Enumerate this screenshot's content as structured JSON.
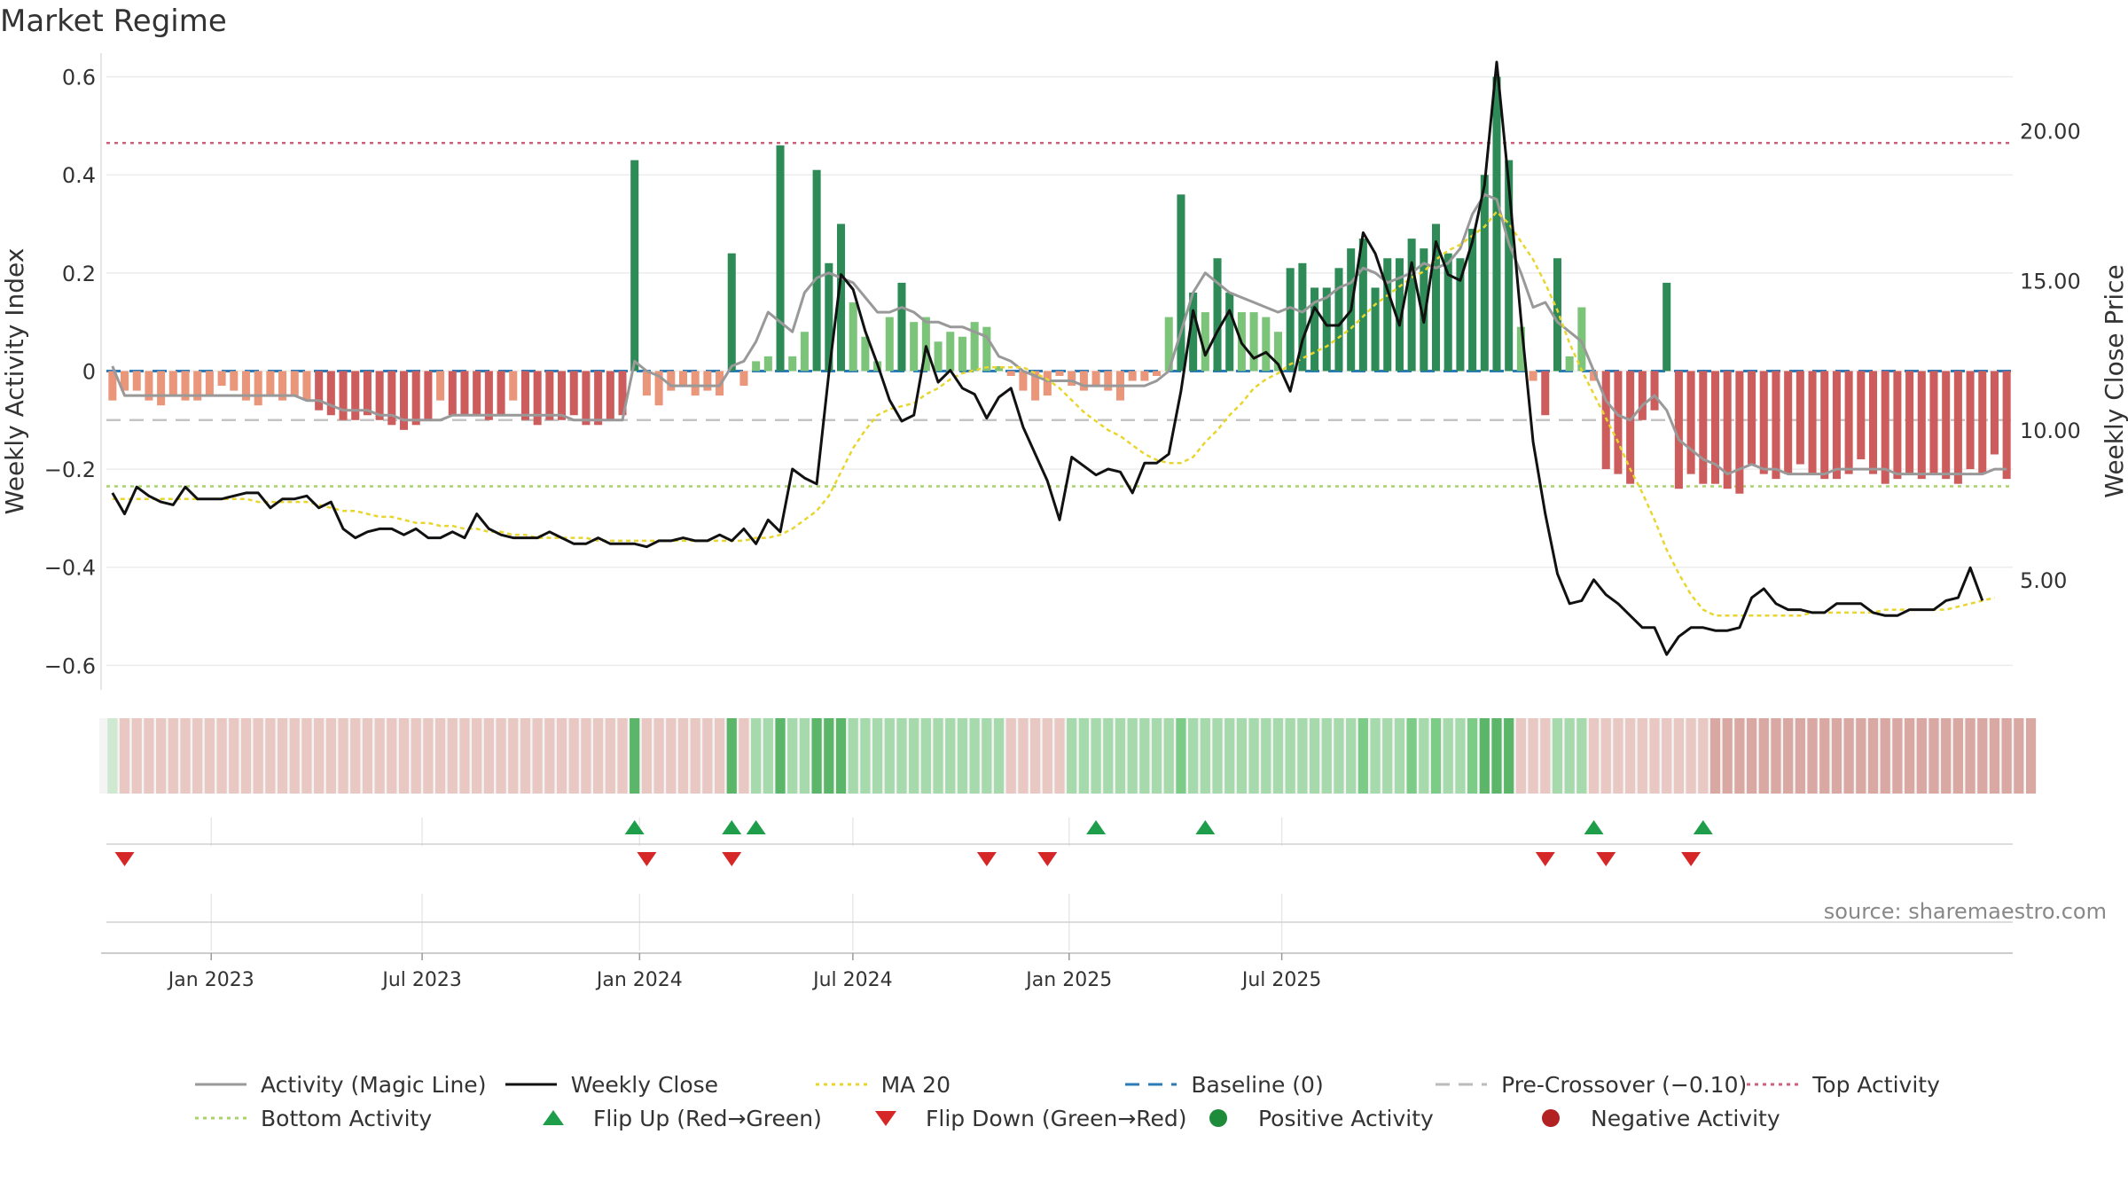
{
  "title": "Market Regime",
  "source": "source: sharemaestro.com",
  "chart_data": {
    "type": "bar+line",
    "title": "Market Regime",
    "x_ticks": [
      "Jan 2023",
      "Jul 2023",
      "Jan 2024",
      "Jul 2024",
      "Jan 2025",
      "Jul 2025"
    ],
    "left_axis": {
      "label": "Weekly Activity Index",
      "range": [
        -0.65,
        0.63
      ],
      "ticks": [
        -0.6,
        -0.4,
        -0.2,
        0,
        0.2,
        0.4,
        0.6
      ],
      "tick_labels": [
        "−0.6",
        "−0.4",
        "−0.2",
        "0",
        "0.2",
        "0.4",
        "0.6"
      ]
    },
    "right_axis": {
      "label": "Weekly Close Price",
      "range": [
        1.32,
        22.3
      ],
      "ticks": [
        5,
        10,
        15,
        20
      ],
      "tick_labels": [
        "5.00",
        "10.00",
        "15.00",
        "20.00"
      ]
    },
    "reference_lines": {
      "top_activity": 0.465,
      "bottom_activity": -0.235,
      "pre_crossover": -0.1,
      "baseline": 0
    },
    "activity_bars": [
      -0.06,
      -0.04,
      -0.04,
      -0.06,
      -0.07,
      -0.05,
      -0.06,
      -0.06,
      -0.05,
      -0.03,
      -0.04,
      -0.06,
      -0.07,
      -0.05,
      -0.06,
      -0.05,
      -0.06,
      -0.08,
      -0.09,
      -0.1,
      -0.1,
      -0.09,
      -0.1,
      -0.11,
      -0.12,
      -0.11,
      -0.1,
      -0.06,
      -0.09,
      -0.09,
      -0.09,
      -0.1,
      -0.09,
      -0.06,
      -0.1,
      -0.11,
      -0.1,
      -0.1,
      -0.09,
      -0.11,
      -0.11,
      -0.1,
      -0.09,
      0.43,
      -0.05,
      -0.07,
      -0.04,
      -0.03,
      -0.05,
      -0.04,
      -0.05,
      0.24,
      -0.03,
      0.02,
      0.03,
      0.46,
      0.03,
      0.08,
      0.41,
      0.22,
      0.3,
      0.14,
      0.07,
      0.02,
      0.11,
      0.18,
      0.1,
      0.11,
      0.06,
      0.08,
      0.07,
      0.1,
      0.09,
      0.01,
      -0.01,
      -0.04,
      -0.06,
      -0.05,
      -0.01,
      -0.03,
      -0.04,
      -0.03,
      -0.04,
      -0.06,
      -0.02,
      -0.02,
      -0.01,
      0.11,
      0.36,
      0.16,
      0.12,
      0.23,
      0.16,
      0.12,
      0.12,
      0.11,
      0.08,
      0.21,
      0.22,
      0.17,
      0.17,
      0.21,
      0.25,
      0.27,
      0.17,
      0.23,
      0.23,
      0.27,
      0.25,
      0.3,
      0.24,
      0.23,
      0.29,
      0.4,
      0.6,
      0.43,
      0.09,
      -0.02,
      -0.09,
      0.23,
      0.03,
      0.13,
      -0.02,
      -0.2,
      -0.21,
      -0.23,
      -0.1,
      -0.08,
      0.18,
      -0.24,
      -0.21,
      -0.23,
      -0.23,
      -0.24,
      -0.25,
      -0.19,
      -0.21,
      -0.22,
      -0.21,
      -0.19,
      -0.21,
      -0.22,
      -0.22,
      -0.21,
      -0.18,
      -0.21,
      -0.23,
      -0.22,
      -0.21,
      -0.22,
      -0.21,
      -0.22,
      -0.23,
      -0.2,
      -0.21,
      -0.17,
      -0.22
    ],
    "series": [
      {
        "name": "Activity (Magic Line)",
        "axis": "left",
        "values": [
          0.01,
          -0.05,
          -0.05,
          -0.05,
          -0.05,
          -0.05,
          -0.05,
          -0.05,
          -0.05,
          -0.05,
          -0.05,
          -0.05,
          -0.05,
          -0.05,
          -0.05,
          -0.05,
          -0.06,
          -0.06,
          -0.07,
          -0.08,
          -0.08,
          -0.08,
          -0.09,
          -0.09,
          -0.1,
          -0.1,
          -0.1,
          -0.1,
          -0.09,
          -0.09,
          -0.09,
          -0.09,
          -0.09,
          -0.09,
          -0.09,
          -0.09,
          -0.09,
          -0.09,
          -0.1,
          -0.1,
          -0.1,
          -0.1,
          -0.1,
          0.02,
          0.0,
          -0.01,
          -0.03,
          -0.03,
          -0.03,
          -0.03,
          -0.03,
          0.01,
          0.02,
          0.06,
          0.12,
          0.1,
          0.08,
          0.16,
          0.19,
          0.2,
          0.19,
          0.18,
          0.15,
          0.12,
          0.12,
          0.13,
          0.12,
          0.1,
          0.1,
          0.09,
          0.09,
          0.08,
          0.07,
          0.03,
          0.02,
          0.0,
          -0.01,
          -0.02,
          -0.02,
          -0.02,
          -0.03,
          -0.03,
          -0.03,
          -0.03,
          -0.03,
          -0.03,
          -0.02,
          0.0,
          0.08,
          0.16,
          0.2,
          0.18,
          0.16,
          0.15,
          0.14,
          0.13,
          0.12,
          0.13,
          0.12,
          0.14,
          0.15,
          0.17,
          0.18,
          0.21,
          0.2,
          0.18,
          0.19,
          0.2,
          0.22,
          0.21,
          0.22,
          0.25,
          0.32,
          0.36,
          0.35,
          0.26,
          0.2,
          0.13,
          0.14,
          0.1,
          0.08,
          0.06,
          0.0,
          -0.06,
          -0.09,
          -0.1,
          -0.07,
          -0.05,
          -0.08,
          -0.14,
          -0.16,
          -0.18,
          -0.19,
          -0.21,
          -0.2,
          -0.19,
          -0.2,
          -0.2,
          -0.21,
          -0.21,
          -0.21,
          -0.21,
          -0.2,
          -0.2,
          -0.2,
          -0.2,
          -0.2,
          -0.21,
          -0.21,
          -0.21,
          -0.21,
          -0.21,
          -0.21,
          -0.21,
          -0.21,
          -0.2,
          -0.2
        ]
      },
      {
        "name": "Weekly Close",
        "axis": "right",
        "values": [
          7.9,
          7.2,
          8.1,
          7.8,
          7.6,
          7.5,
          8.1,
          7.7,
          7.7,
          7.7,
          7.8,
          7.9,
          7.9,
          7.4,
          7.7,
          7.7,
          7.8,
          7.4,
          7.6,
          6.7,
          6.4,
          6.6,
          6.7,
          6.7,
          6.5,
          6.7,
          6.4,
          6.4,
          6.6,
          6.4,
          7.2,
          6.7,
          6.5,
          6.4,
          6.4,
          6.4,
          6.6,
          6.4,
          6.2,
          6.2,
          6.4,
          6.2,
          6.2,
          6.2,
          6.1,
          6.3,
          6.3,
          6.4,
          6.3,
          6.3,
          6.5,
          6.3,
          6.7,
          6.2,
          7.0,
          6.6,
          8.7,
          8.4,
          8.2,
          11.9,
          15.2,
          14.7,
          13.3,
          12.2,
          11.0,
          10.3,
          10.5,
          12.8,
          11.6,
          12.0,
          11.4,
          11.2,
          10.4,
          11.1,
          11.4,
          10.1,
          9.2,
          8.3,
          7.0,
          9.1,
          8.8,
          8.5,
          8.7,
          8.6,
          7.9,
          8.9,
          8.9,
          9.2,
          11.3,
          14.0,
          12.5,
          13.3,
          14.0,
          12.9,
          12.4,
          12.6,
          12.2,
          11.3,
          13.0,
          14.1,
          13.5,
          13.5,
          14.0,
          16.6,
          15.9,
          14.7,
          13.5,
          15.6,
          13.6,
          16.3,
          15.2,
          15.0,
          16.3,
          18.2,
          22.3,
          18.2,
          13.7,
          9.6,
          7.2,
          5.2,
          4.2,
          4.3,
          5.0,
          4.5,
          4.2,
          3.8,
          3.4,
          3.4,
          2.5,
          3.1,
          3.4,
          3.4,
          3.3,
          3.3,
          3.4,
          4.4,
          4.7,
          4.2,
          4.0,
          4.0,
          3.9,
          3.9,
          4.2,
          4.2,
          4.2,
          3.9,
          3.8,
          3.8,
          4.0,
          4.0,
          4.0,
          4.3,
          4.4,
          5.4,
          4.3
        ]
      },
      {
        "name": "MA 20",
        "axis": "right",
        "values": [
          7.7,
          7.7,
          7.7,
          7.7,
          7.7,
          7.7,
          7.7,
          7.7,
          7.7,
          7.7,
          7.7,
          7.7,
          7.6,
          7.6,
          7.6,
          7.6,
          7.6,
          7.5,
          7.4,
          7.3,
          7.3,
          7.2,
          7.1,
          7.1,
          7.0,
          6.9,
          6.9,
          6.8,
          6.8,
          6.7,
          6.7,
          6.6,
          6.6,
          6.5,
          6.5,
          6.4,
          6.4,
          6.4,
          6.4,
          6.4,
          6.3,
          6.3,
          6.3,
          6.3,
          6.3,
          6.3,
          6.3,
          6.3,
          6.3,
          6.3,
          6.3,
          6.3,
          6.3,
          6.4,
          6.4,
          6.5,
          6.7,
          7.0,
          7.3,
          7.8,
          8.6,
          9.4,
          10.0,
          10.5,
          10.7,
          10.8,
          10.9,
          11.2,
          11.4,
          11.7,
          11.9,
          12.0,
          12.1,
          12.1,
          12.1,
          12.1,
          11.9,
          11.7,
          11.4,
          11.0,
          10.6,
          10.3,
          10.0,
          9.8,
          9.5,
          9.2,
          9.0,
          8.9,
          8.9,
          9.1,
          9.6,
          10.0,
          10.5,
          10.9,
          11.4,
          11.7,
          11.9,
          12.2,
          12.4,
          12.6,
          12.8,
          13.1,
          13.4,
          13.8,
          14.2,
          14.5,
          14.8,
          15.1,
          15.3,
          15.7,
          16.0,
          16.2,
          16.5,
          16.8,
          17.3,
          16.9,
          16.3,
          15.7,
          14.9,
          14.0,
          12.9,
          12.0,
          11.2,
          10.4,
          9.6,
          8.7,
          7.9,
          7.0,
          6.0,
          5.2,
          4.5,
          4.0,
          3.8,
          3.8,
          3.8,
          3.8,
          3.8,
          3.8,
          3.8,
          3.8,
          3.9,
          3.9,
          3.9,
          3.9,
          3.9,
          3.9,
          4.0,
          4.0,
          4.0,
          4.0,
          4.0,
          4.0,
          4.1,
          4.2,
          4.3,
          4.4
        ]
      }
    ],
    "regime_strip": [
      0,
      1,
      1,
      1,
      1,
      1,
      1,
      1,
      1,
      1,
      1,
      1,
      1,
      1,
      1,
      1,
      1,
      1,
      1,
      1,
      1,
      1,
      1,
      1,
      1,
      1,
      1,
      1,
      1,
      1,
      1,
      1,
      1,
      1,
      1,
      1,
      1,
      1,
      1,
      1,
      1,
      1,
      1,
      2,
      1,
      1,
      1,
      1,
      1,
      1,
      1,
      2,
      1,
      0,
      0,
      2,
      0,
      0,
      2,
      2,
      2,
      0,
      0,
      0,
      0,
      0,
      0,
      0,
      0,
      0,
      0,
      0,
      0,
      0,
      1,
      1,
      1,
      1,
      1,
      0,
      0,
      0,
      0,
      0,
      0,
      0,
      0,
      0,
      0,
      0,
      0,
      0,
      0,
      0,
      0,
      0,
      0,
      0,
      0,
      0,
      0,
      0,
      0,
      0,
      0,
      0,
      0,
      0,
      0,
      0,
      0,
      0,
      0,
      2,
      2,
      2,
      1,
      1,
      1,
      0,
      0,
      0,
      1,
      1,
      1,
      1,
      1,
      1,
      1,
      1,
      1,
      1,
      1,
      1,
      1,
      1,
      1,
      1,
      1,
      1,
      1,
      1,
      1,
      1,
      1,
      1,
      1,
      1,
      1,
      1,
      1,
      1,
      1,
      1,
      1,
      1,
      1,
      1,
      1
    ],
    "flip_up_weeks": [
      43,
      51,
      53,
      81,
      90,
      122,
      131
    ],
    "flip_down_weeks": [
      1,
      44,
      51,
      72,
      77,
      118,
      123,
      130
    ],
    "legend": [
      {
        "label": "Activity (Magic Line)",
        "marker": "line",
        "color": "#999999"
      },
      {
        "label": "Weekly Close",
        "marker": "line",
        "color": "#111111"
      },
      {
        "label": "MA 20",
        "marker": "dotted",
        "color": "#e8d62e"
      },
      {
        "label": "Baseline (0)",
        "marker": "dashed",
        "color": "#2b7bb9"
      },
      {
        "label": "Pre-Crossover (−0.10)",
        "marker": "dashed",
        "color": "#bbbbbb"
      },
      {
        "label": "Top Activity",
        "marker": "dotted",
        "color": "#d0607a"
      },
      {
        "label": "Bottom Activity",
        "marker": "dotted",
        "color": "#a9d36a"
      },
      {
        "label": "Flip Up (Red→Green)",
        "marker": "triangle-up",
        "color": "#1e9e4a"
      },
      {
        "label": "Flip Down (Green→Red)",
        "marker": "triangle-down",
        "color": "#d62728"
      },
      {
        "label": "Positive Activity",
        "marker": "dot",
        "color": "#1e8b3a"
      },
      {
        "label": "Negative Activity",
        "marker": "dot",
        "color": "#b22222"
      }
    ]
  }
}
